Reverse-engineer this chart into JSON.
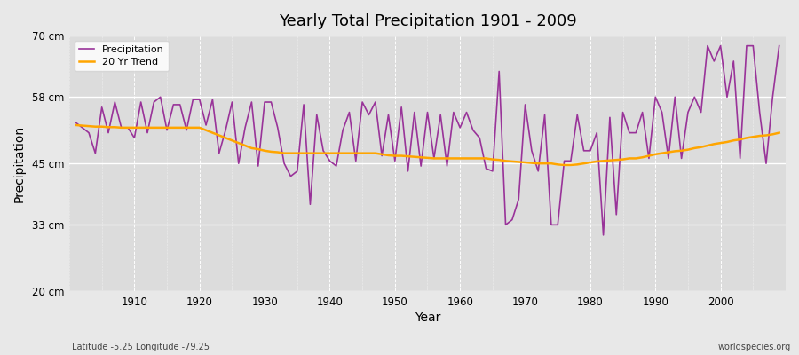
{
  "title": "Yearly Total Precipitation 1901 - 2009",
  "xlabel": "Year",
  "ylabel": "Precipitation",
  "bottom_left_label": "Latitude -5.25 Longitude -79.25",
  "bottom_right_label": "worldspecies.org",
  "ylim": [
    20,
    70
  ],
  "yticks": [
    20,
    33,
    45,
    58,
    70
  ],
  "ytick_labels": [
    "20 cm",
    "33 cm",
    "45 cm",
    "58 cm",
    "70 cm"
  ],
  "xlim": [
    1901,
    2009
  ],
  "xticks": [
    1910,
    1920,
    1930,
    1940,
    1950,
    1960,
    1970,
    1980,
    1990,
    2000
  ],
  "precip_color": "#993399",
  "trend_color": "#FFA500",
  "bg_color": "#E8E8E8",
  "plot_bg_color": "#DCDCDC",
  "years": [
    1901,
    1902,
    1903,
    1904,
    1905,
    1906,
    1907,
    1908,
    1909,
    1910,
    1911,
    1912,
    1913,
    1914,
    1915,
    1916,
    1917,
    1918,
    1919,
    1920,
    1921,
    1922,
    1923,
    1924,
    1925,
    1926,
    1927,
    1928,
    1929,
    1930,
    1931,
    1932,
    1933,
    1934,
    1935,
    1936,
    1937,
    1938,
    1939,
    1940,
    1941,
    1942,
    1943,
    1944,
    1945,
    1946,
    1947,
    1948,
    1949,
    1950,
    1951,
    1952,
    1953,
    1954,
    1955,
    1956,
    1957,
    1958,
    1959,
    1960,
    1961,
    1962,
    1963,
    1964,
    1965,
    1966,
    1967,
    1968,
    1969,
    1970,
    1971,
    1972,
    1973,
    1974,
    1975,
    1976,
    1977,
    1978,
    1979,
    1980,
    1981,
    1982,
    1983,
    1984,
    1985,
    1986,
    1987,
    1988,
    1989,
    1990,
    1991,
    1992,
    1993,
    1994,
    1995,
    1996,
    1997,
    1998,
    1999,
    2000,
    2001,
    2002,
    2003,
    2004,
    2005,
    2006,
    2007,
    2008,
    2009
  ],
  "precip": [
    53.0,
    52.0,
    51.0,
    47.0,
    56.0,
    51.0,
    57.0,
    52.0,
    52.0,
    50.0,
    57.0,
    51.0,
    57.0,
    58.0,
    51.5,
    56.5,
    56.5,
    51.5,
    57.5,
    57.5,
    52.5,
    57.5,
    47.0,
    51.5,
    57.0,
    45.0,
    52.0,
    57.0,
    44.5,
    57.0,
    57.0,
    52.0,
    45.0,
    42.5,
    43.5,
    56.5,
    37.0,
    54.5,
    47.5,
    45.5,
    44.5,
    51.5,
    55.0,
    45.5,
    57.0,
    54.5,
    57.0,
    46.5,
    54.5,
    45.5,
    56.0,
    43.5,
    55.0,
    44.5,
    55.0,
    46.0,
    54.5,
    44.5,
    55.0,
    52.0,
    55.0,
    51.5,
    50.0,
    44.0,
    43.5,
    63.0,
    33.0,
    34.0,
    38.0,
    56.5,
    47.5,
    43.5,
    54.5,
    33.0,
    33.0,
    45.5,
    45.5,
    54.5,
    47.5,
    47.5,
    51.0,
    31.0,
    54.0,
    35.0,
    55.0,
    51.0,
    51.0,
    55.0,
    46.0,
    58.0,
    55.0,
    46.0,
    58.0,
    46.0,
    55.0,
    58.0,
    55.0,
    68.0,
    65.0,
    68.0,
    58.0,
    65.0,
    46.0,
    68.0,
    68.0,
    55.0,
    45.0,
    58.0,
    68.0
  ],
  "trend": [
    52.5,
    52.4,
    52.3,
    52.2,
    52.2,
    52.1,
    52.1,
    52.0,
    52.0,
    52.0,
    52.0,
    52.0,
    52.0,
    52.0,
    52.0,
    52.0,
    52.0,
    52.0,
    52.0,
    52.0,
    51.5,
    51.0,
    50.5,
    50.0,
    49.5,
    49.0,
    48.5,
    48.0,
    47.8,
    47.5,
    47.3,
    47.2,
    47.0,
    47.0,
    47.0,
    47.0,
    47.0,
    47.0,
    47.0,
    47.0,
    47.0,
    47.0,
    47.0,
    47.0,
    47.0,
    47.0,
    47.0,
    46.8,
    46.6,
    46.5,
    46.5,
    46.4,
    46.3,
    46.2,
    46.1,
    46.0,
    46.0,
    46.0,
    46.0,
    46.0,
    46.0,
    46.0,
    46.0,
    46.0,
    45.8,
    45.7,
    45.5,
    45.4,
    45.3,
    45.2,
    45.1,
    45.0,
    45.0,
    45.0,
    44.8,
    44.7,
    44.7,
    44.8,
    45.0,
    45.2,
    45.4,
    45.5,
    45.6,
    45.7,
    45.8,
    46.0,
    46.0,
    46.2,
    46.5,
    46.8,
    47.0,
    47.2,
    47.4,
    47.5,
    47.7,
    48.0,
    48.2,
    48.5,
    48.8,
    49.0,
    49.2,
    49.5,
    49.7,
    50.0,
    50.2,
    50.4,
    50.5,
    50.7,
    51.0
  ]
}
